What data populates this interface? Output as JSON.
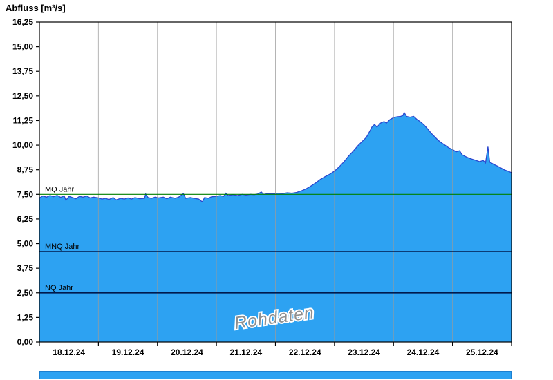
{
  "page": {
    "title": "Abfluss [m³/s]"
  },
  "colors": {
    "area_fill": "#2da2f2",
    "area_line": "#2b47cf",
    "grid": "#9b9b9b",
    "ref_mq": "#007f00",
    "ref_dark": "#001a4d",
    "frame": "#000000",
    "watermark_fill": "#8f8f8f",
    "scrollbar": "#2da2f2"
  },
  "chart_data": {
    "type": "area",
    "title": "Abfluss [m³/s]",
    "ylabel": "Abfluss [m³/s]",
    "xlabel": "",
    "watermark": "Rohdaten",
    "grid": "vertical-only",
    "x_axis": {
      "unit": "date",
      "day_labels": [
        "18.12.24",
        "19.12.24",
        "20.12.24",
        "21.12.24",
        "22.12.24",
        "23.12.24",
        "24.12.24",
        "25.12.24"
      ],
      "range_days": [
        0,
        8
      ]
    },
    "y_axis": {
      "min": 0,
      "max": 16.25,
      "step": 1.25,
      "tick_labels": [
        "0,00",
        "1,25",
        "2,50",
        "3,75",
        "5,00",
        "6,25",
        "7,50",
        "8,75",
        "10,00",
        "11,25",
        "12,50",
        "13,75",
        "15,00",
        "16,25"
      ]
    },
    "ref_lines": [
      {
        "label": "MQ Jahr",
        "value": 7.5,
        "color_key": "ref_mq"
      },
      {
        "label": "MNQ Jahr",
        "value": 4.6,
        "color_key": "ref_dark"
      },
      {
        "label": "NQ Jahr",
        "value": 2.5,
        "color_key": "ref_dark"
      }
    ],
    "series": [
      {
        "name": "Abfluss Rohdaten",
        "points": [
          [
            0,
            7.32
          ],
          [
            0.06,
            7.42
          ],
          [
            0.12,
            7.36
          ],
          [
            0.18,
            7.44
          ],
          [
            0.24,
            7.38
          ],
          [
            0.3,
            7.45
          ],
          [
            0.36,
            7.35
          ],
          [
            0.42,
            7.42
          ],
          [
            0.45,
            7.2
          ],
          [
            0.5,
            7.4
          ],
          [
            0.56,
            7.34
          ],
          [
            0.62,
            7.28
          ],
          [
            0.68,
            7.4
          ],
          [
            0.74,
            7.36
          ],
          [
            0.8,
            7.42
          ],
          [
            0.86,
            7.32
          ],
          [
            0.92,
            7.36
          ],
          [
            1,
            7.32
          ],
          [
            1.06,
            7.26
          ],
          [
            1.12,
            7.3
          ],
          [
            1.18,
            7.24
          ],
          [
            1.25,
            7.34
          ],
          [
            1.3,
            7.22
          ],
          [
            1.38,
            7.3
          ],
          [
            1.44,
            7.26
          ],
          [
            1.5,
            7.32
          ],
          [
            1.56,
            7.26
          ],
          [
            1.62,
            7.34
          ],
          [
            1.7,
            7.28
          ],
          [
            1.78,
            7.3
          ],
          [
            1.8,
            7.52
          ],
          [
            1.84,
            7.34
          ],
          [
            1.9,
            7.3
          ],
          [
            1.96,
            7.36
          ],
          [
            2.02,
            7.32
          ],
          [
            2.1,
            7.36
          ],
          [
            2.16,
            7.28
          ],
          [
            2.22,
            7.36
          ],
          [
            2.3,
            7.3
          ],
          [
            2.36,
            7.36
          ],
          [
            2.44,
            7.54
          ],
          [
            2.48,
            7.3
          ],
          [
            2.56,
            7.34
          ],
          [
            2.62,
            7.3
          ],
          [
            2.7,
            7.26
          ],
          [
            2.76,
            7.12
          ],
          [
            2.8,
            7.34
          ],
          [
            2.86,
            7.3
          ],
          [
            2.92,
            7.38
          ],
          [
            3,
            7.4
          ],
          [
            3.06,
            7.44
          ],
          [
            3.12,
            7.4
          ],
          [
            3.16,
            7.56
          ],
          [
            3.2,
            7.44
          ],
          [
            3.28,
            7.48
          ],
          [
            3.36,
            7.44
          ],
          [
            3.44,
            7.5
          ],
          [
            3.5,
            7.46
          ],
          [
            3.58,
            7.5
          ],
          [
            3.64,
            7.48
          ],
          [
            3.7,
            7.52
          ],
          [
            3.76,
            7.62
          ],
          [
            3.8,
            7.5
          ],
          [
            3.88,
            7.54
          ],
          [
            3.96,
            7.52
          ],
          [
            4.04,
            7.56
          ],
          [
            4.12,
            7.54
          ],
          [
            4.2,
            7.58
          ],
          [
            4.28,
            7.56
          ],
          [
            4.36,
            7.6
          ],
          [
            4.44,
            7.68
          ],
          [
            4.52,
            7.78
          ],
          [
            4.6,
            7.92
          ],
          [
            4.68,
            8.08
          ],
          [
            4.76,
            8.26
          ],
          [
            4.84,
            8.4
          ],
          [
            4.92,
            8.52
          ],
          [
            5,
            8.68
          ],
          [
            5.08,
            8.9
          ],
          [
            5.16,
            9.15
          ],
          [
            5.24,
            9.45
          ],
          [
            5.32,
            9.7
          ],
          [
            5.4,
            9.98
          ],
          [
            5.48,
            10.22
          ],
          [
            5.54,
            10.4
          ],
          [
            5.6,
            10.72
          ],
          [
            5.64,
            10.95
          ],
          [
            5.68,
            11.05
          ],
          [
            5.72,
            10.92
          ],
          [
            5.78,
            11.12
          ],
          [
            5.84,
            11.2
          ],
          [
            5.88,
            11.12
          ],
          [
            5.94,
            11.3
          ],
          [
            6,
            11.4
          ],
          [
            6.06,
            11.44
          ],
          [
            6.12,
            11.46
          ],
          [
            6.16,
            11.5
          ],
          [
            6.18,
            11.66
          ],
          [
            6.22,
            11.46
          ],
          [
            6.28,
            11.42
          ],
          [
            6.34,
            11.46
          ],
          [
            6.4,
            11.3
          ],
          [
            6.46,
            11.18
          ],
          [
            6.52,
            11.02
          ],
          [
            6.58,
            10.82
          ],
          [
            6.64,
            10.6
          ],
          [
            6.7,
            10.42
          ],
          [
            6.76,
            10.24
          ],
          [
            6.82,
            10.1
          ],
          [
            6.88,
            9.98
          ],
          [
            6.94,
            9.86
          ],
          [
            7,
            9.78
          ],
          [
            7.06,
            9.66
          ],
          [
            7.12,
            9.72
          ],
          [
            7.16,
            9.52
          ],
          [
            7.22,
            9.42
          ],
          [
            7.28,
            9.34
          ],
          [
            7.34,
            9.28
          ],
          [
            7.4,
            9.22
          ],
          [
            7.46,
            9.16
          ],
          [
            7.52,
            9.22
          ],
          [
            7.56,
            9.1
          ],
          [
            7.6,
            9.92
          ],
          [
            7.63,
            9.14
          ],
          [
            7.7,
            9.02
          ],
          [
            7.76,
            8.94
          ],
          [
            7.82,
            8.84
          ],
          [
            7.88,
            8.74
          ],
          [
            7.94,
            8.68
          ],
          [
            8,
            8.6
          ]
        ]
      }
    ]
  }
}
